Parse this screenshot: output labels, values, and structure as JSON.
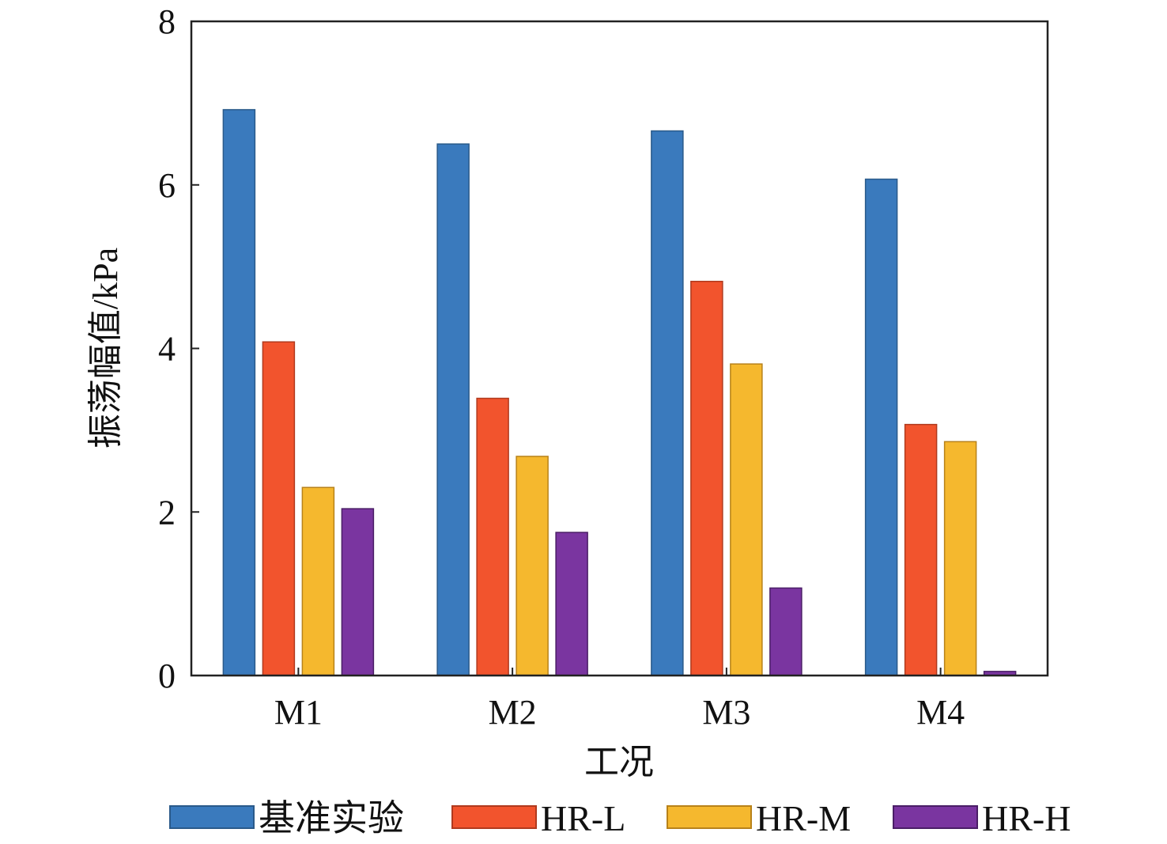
{
  "chart_data": {
    "type": "bar",
    "categories": [
      "M1",
      "M2",
      "M3",
      "M4"
    ],
    "series": [
      {
        "name": "基准实验",
        "values": [
          6.92,
          6.5,
          6.66,
          6.07
        ]
      },
      {
        "name": "HR-L",
        "values": [
          4.08,
          3.39,
          4.82,
          3.07
        ]
      },
      {
        "name": "HR-M",
        "values": [
          2.3,
          2.68,
          3.81,
          2.86
        ]
      },
      {
        "name": "HR-H",
        "values": [
          2.04,
          1.75,
          1.07,
          0.05
        ]
      }
    ],
    "title": "",
    "xlabel": "工况",
    "ylabel": "振荡幅值/kPa",
    "ylim": [
      0,
      8
    ],
    "yticks": [
      "0",
      "2",
      "4",
      "6",
      "8"
    ],
    "grid": false,
    "legend_position": "bottom",
    "colors": [
      "#3a7abd",
      "#f2542d",
      "#f5b82e",
      "#7a35a0"
    ],
    "edge_colors": [
      "#2a5a8a",
      "#b03a1e",
      "#b8821a",
      "#4a1e66"
    ]
  }
}
